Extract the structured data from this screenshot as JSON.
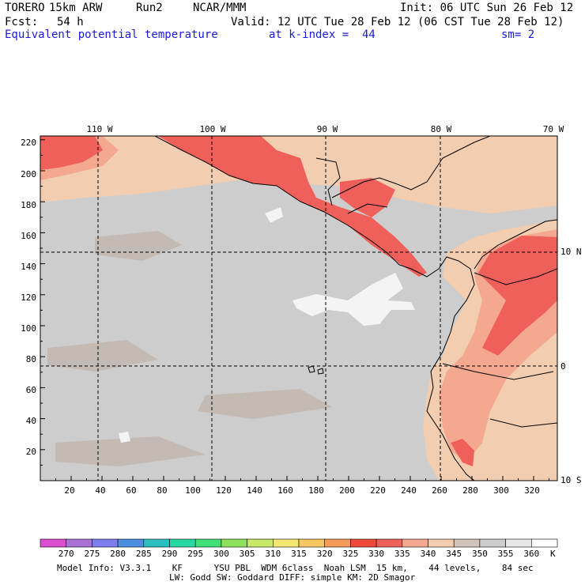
{
  "header": {
    "model": "TORERO",
    "resolution": "15km ARW",
    "run": "Run2",
    "org": "NCAR/MMM",
    "init": "Init: 06 UTC Sun 26 Feb 12",
    "fcst_label": "Fcst:",
    "fcst_value": "54 h",
    "valid": "Valid: 12 UTC Tue 28 Feb 12 (06 CST Tue 28 Feb 12)",
    "field": "Equivalent potential temperature",
    "level": "at k-index =  44",
    "smoothing": "sm= 2"
  },
  "axes": {
    "left_ticks": [
      "220",
      "200",
      "180",
      "160",
      "140",
      "120",
      "100",
      "80",
      "60",
      "40",
      "20"
    ],
    "bottom_ticks": [
      "20",
      "40",
      "60",
      "80",
      "100",
      "120",
      "140",
      "160",
      "180",
      "200",
      "220",
      "240",
      "260",
      "280",
      "300",
      "320"
    ],
    "top_lon": [
      "110 W",
      "100 W",
      "90 W",
      "80 W",
      "70 W"
    ],
    "right_lat": [
      "10 N",
      "0",
      "10 S"
    ]
  },
  "colorbar": {
    "unit": "K",
    "labels": [
      "270",
      "275",
      "280",
      "285",
      "290",
      "295",
      "300",
      "305",
      "310",
      "315",
      "320",
      "325",
      "330",
      "335",
      "340",
      "345",
      "350",
      "355",
      "360"
    ],
    "colors": [
      "#d94fd0",
      "#a872d6",
      "#7e7ef0",
      "#4c8fe0",
      "#2bbfc0",
      "#27d9a0",
      "#43e07a",
      "#8fe05a",
      "#c8e86a",
      "#f5e870",
      "#f7c860",
      "#f69a5a",
      "#f04a3a",
      "#f0605a",
      "#f4a890",
      "#f2cdb0",
      "#d0c4bb",
      "#cdcdcd",
      "#e8e8e8",
      "#ffffff"
    ]
  },
  "footer": {
    "line1": "Model Info: V3.3.1    KF      YSU PBL  WDM 6class  Noah LSM  15 km,    44 levels,    84 sec",
    "line2": "LW: Godd SW: Goddard DIFF: simple KM: 2D Smagor"
  },
  "map_colors": {
    "ocean": "#cdcdcd",
    "land_warm": "#f2cdb0",
    "land_hot": "#f4a890",
    "core": "#f0605a",
    "white_patch": "#f4f4f4",
    "gray_patch": "#c4bab4"
  }
}
